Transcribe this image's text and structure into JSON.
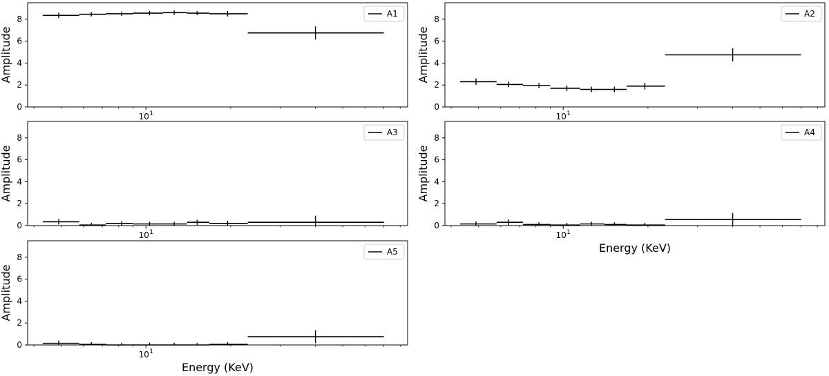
{
  "chart_data": [
    {
      "type": "line",
      "style": "step-with-errorbars",
      "xscale": "log",
      "xlim": [
        3.8,
        85
      ],
      "ylim": [
        0,
        9.5
      ],
      "yticks": [
        0,
        2,
        4,
        6,
        8
      ],
      "ytick_labels": [
        "0",
        "2",
        "4",
        "6",
        "8"
      ],
      "xticks": [
        10
      ],
      "xtick_labels": [
        "10"
      ],
      "xtick_label_exponent": "1",
      "xlabel": "",
      "ylabel": "Amplitude",
      "legend": "top-right",
      "series": [
        {
          "name": "A1",
          "bins": [
            [
              4.3,
              5.8
            ],
            [
              5.8,
              7.2
            ],
            [
              7.2,
              9.0
            ],
            [
              9.0,
              11.5
            ],
            [
              11.5,
              14.0
            ],
            [
              14.0,
              16.8
            ],
            [
              16.8,
              23.0
            ],
            [
              23.0,
              70.0
            ]
          ],
          "x": [
            4.9,
            6.4,
            8.2,
            10.3,
            12.6,
            15.2,
            19.5,
            40.0
          ],
          "values": [
            8.35,
            8.45,
            8.5,
            8.55,
            8.6,
            8.55,
            8.5,
            6.75
          ],
          "yerr": [
            0.25,
            0.2,
            0.2,
            0.2,
            0.2,
            0.2,
            0.25,
            0.6
          ]
        }
      ]
    },
    {
      "type": "line",
      "style": "step-with-errorbars",
      "xscale": "log",
      "xlim": [
        3.8,
        85
      ],
      "ylim": [
        0,
        9.5
      ],
      "yticks": [
        0,
        2,
        4,
        6,
        8
      ],
      "ytick_labels": [
        "0",
        "2",
        "4",
        "6",
        "8"
      ],
      "xticks": [
        10
      ],
      "xtick_labels": [
        "10"
      ],
      "xtick_label_exponent": "1",
      "xlabel": "",
      "ylabel": "Amplitude",
      "legend": "top-right",
      "series": [
        {
          "name": "A2",
          "bins": [
            [
              4.3,
              5.8
            ],
            [
              5.8,
              7.2
            ],
            [
              7.2,
              9.0
            ],
            [
              9.0,
              11.5
            ],
            [
              11.5,
              14.0
            ],
            [
              14.0,
              16.8
            ],
            [
              16.8,
              23.0
            ],
            [
              23.0,
              70.0
            ]
          ],
          "x": [
            4.9,
            6.4,
            8.2,
            10.3,
            12.6,
            15.2,
            19.5,
            40.0
          ],
          "values": [
            2.3,
            2.05,
            1.95,
            1.7,
            1.6,
            1.6,
            1.9,
            4.75
          ],
          "yerr": [
            0.3,
            0.25,
            0.25,
            0.25,
            0.25,
            0.25,
            0.3,
            0.6
          ]
        }
      ]
    },
    {
      "type": "line",
      "style": "step-with-errorbars",
      "xscale": "log",
      "xlim": [
        3.8,
        85
      ],
      "ylim": [
        0,
        9.5
      ],
      "yticks": [
        0,
        2,
        4,
        6,
        8
      ],
      "ytick_labels": [
        "0",
        "2",
        "4",
        "6",
        "8"
      ],
      "xticks": [
        10
      ],
      "xtick_labels": [
        "10"
      ],
      "xtick_label_exponent": "1",
      "xlabel": "",
      "ylabel": "Amplitude",
      "legend": "top-right",
      "series": [
        {
          "name": "A3",
          "bins": [
            [
              4.3,
              5.8
            ],
            [
              5.8,
              7.2
            ],
            [
              7.2,
              9.0
            ],
            [
              9.0,
              11.5
            ],
            [
              11.5,
              14.0
            ],
            [
              14.0,
              16.8
            ],
            [
              16.8,
              23.0
            ],
            [
              23.0,
              70.0
            ]
          ],
          "x": [
            4.9,
            6.4,
            8.2,
            10.3,
            12.6,
            15.2,
            19.5,
            40.0
          ],
          "values": [
            0.35,
            0.05,
            0.2,
            0.15,
            0.15,
            0.3,
            0.2,
            0.3
          ],
          "yerr": [
            0.25,
            0.2,
            0.2,
            0.2,
            0.2,
            0.25,
            0.25,
            0.6
          ]
        }
      ]
    },
    {
      "type": "line",
      "style": "step-with-errorbars",
      "xscale": "log",
      "xlim": [
        3.8,
        85
      ],
      "ylim": [
        0,
        9.5
      ],
      "yticks": [
        0,
        2,
        4,
        6,
        8
      ],
      "ytick_labels": [
        "0",
        "2",
        "4",
        "6",
        "8"
      ],
      "xticks": [
        10
      ],
      "xtick_labels": [
        "10"
      ],
      "xtick_label_exponent": "1",
      "xlabel": "Energy (KeV)",
      "ylabel": "Amplitude",
      "legend": "top-right",
      "series": [
        {
          "name": "A4",
          "bins": [
            [
              4.3,
              5.8
            ],
            [
              5.8,
              7.2
            ],
            [
              7.2,
              9.0
            ],
            [
              9.0,
              11.5
            ],
            [
              11.5,
              14.0
            ],
            [
              14.0,
              16.8
            ],
            [
              16.8,
              23.0
            ],
            [
              23.0,
              70.0
            ]
          ],
          "x": [
            4.9,
            6.4,
            8.2,
            10.3,
            12.6,
            15.2,
            19.5,
            40.0
          ],
          "values": [
            0.15,
            0.3,
            0.1,
            0.05,
            0.15,
            0.1,
            0.05,
            0.55
          ],
          "yerr": [
            0.25,
            0.25,
            0.2,
            0.2,
            0.2,
            0.2,
            0.2,
            0.6
          ]
        }
      ]
    },
    {
      "type": "line",
      "style": "step-with-errorbars",
      "xscale": "log",
      "xlim": [
        3.8,
        85
      ],
      "ylim": [
        0,
        9.5
      ],
      "yticks": [
        0,
        2,
        4,
        6,
        8
      ],
      "ytick_labels": [
        "0",
        "2",
        "4",
        "6",
        "8"
      ],
      "xticks": [
        10
      ],
      "xtick_labels": [
        "10"
      ],
      "xtick_label_exponent": "1",
      "xlabel": "Energy (KeV)",
      "ylabel": "Amplitude",
      "legend": "top-right",
      "series": [
        {
          "name": "A5",
          "bins": [
            [
              4.3,
              5.8
            ],
            [
              5.8,
              7.2
            ],
            [
              7.2,
              9.0
            ],
            [
              9.0,
              11.5
            ],
            [
              11.5,
              14.0
            ],
            [
              14.0,
              16.8
            ],
            [
              16.8,
              23.0
            ],
            [
              23.0,
              70.0
            ]
          ],
          "x": [
            4.9,
            6.4,
            8.2,
            10.3,
            12.6,
            15.2,
            19.5,
            40.0
          ],
          "values": [
            0.15,
            0.05,
            0.0,
            0.0,
            0.0,
            0.0,
            0.05,
            0.75
          ],
          "yerr": [
            0.25,
            0.2,
            0.2,
            0.2,
            0.2,
            0.2,
            0.2,
            0.6
          ]
        }
      ]
    }
  ],
  "colors": {
    "line": "#000000",
    "axes": "#000000",
    "legend_border": "#cccccc",
    "background": "#ffffff"
  }
}
